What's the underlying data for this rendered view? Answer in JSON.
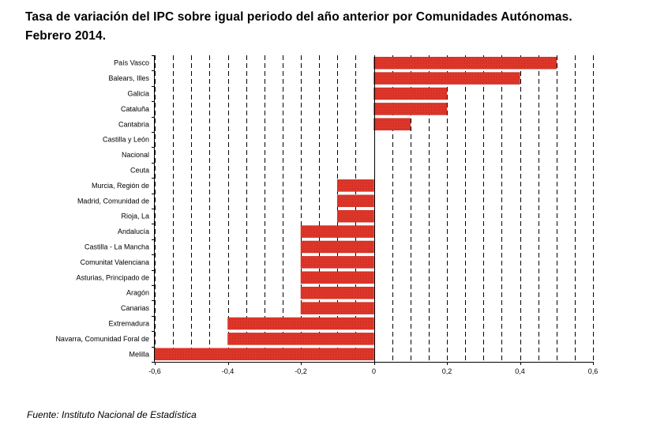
{
  "title_line1": "Tasa de variación del IPC sobre igual periodo del año anterior por Comunidades Autónomas.",
  "title_line2": "Febrero 2014.",
  "source": "Fuente: Instituto Nacional de Estadística",
  "chart_data": {
    "type": "bar",
    "orientation": "horizontal",
    "title": "Tasa de variación del IPC sobre igual periodo del año anterior por Comunidades Autónomas. Febrero 2014.",
    "xlabel": "",
    "ylabel": "",
    "xlim": [
      -0.6,
      0.6
    ],
    "x_ticks": [
      -0.6,
      -0.4,
      -0.2,
      0,
      0.2,
      0.4,
      0.6
    ],
    "tick_labels": [
      "-0,6",
      "-0,4",
      "-0,2",
      "0",
      "0,2",
      "0,4",
      "0,6"
    ],
    "grid": "vertical dashed",
    "bar_color": "#e2382b",
    "categories": [
      "País Vasco",
      "Balears, Illes",
      "Galicia",
      "Cataluña",
      "Cantabria",
      "Castilla y León",
      "Nacional",
      "Ceuta",
      "Murcia, Región de",
      "Madrid, Comunidad de",
      "Rioja, La",
      "Andalucía",
      "Castilla - La Mancha",
      "Comunitat Valenciana",
      "Asturias, Principado de",
      "Aragón",
      "Canarias",
      "Extremadura",
      "Navarra, Comunidad Foral de",
      "Melilla"
    ],
    "values": [
      0.5,
      0.4,
      0.2,
      0.2,
      0.1,
      0,
      0,
      0,
      -0.1,
      -0.1,
      -0.1,
      -0.2,
      -0.2,
      -0.2,
      -0.2,
      -0.2,
      -0.2,
      -0.4,
      -0.4,
      -0.6
    ]
  }
}
